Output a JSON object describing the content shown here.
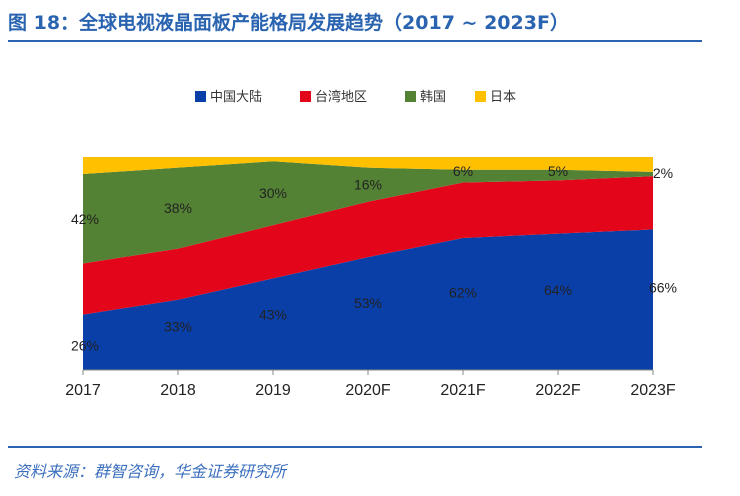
{
  "title": "图 18：全球电视液晶面板产能格局发展趋势（2017 ~ 2023F）",
  "source": "资料来源：群智咨询，华金证券研究所",
  "chart_data": {
    "type": "area",
    "stacked": "percent",
    "categories": [
      "2017",
      "2018",
      "2019",
      "2020F",
      "2021F",
      "2022F",
      "2023F"
    ],
    "ylim": [
      0,
      100
    ],
    "legend_position": "top",
    "grid": false,
    "series": [
      {
        "name": "中国大陆",
        "color": "#0b3fa8",
        "values": [
          26,
          33,
          43,
          53,
          62,
          64,
          66
        ],
        "labels": [
          "26%",
          "33%",
          "43%",
          "53%",
          "62%",
          "64%",
          "66%"
        ]
      },
      {
        "name": "台湾地区",
        "color": "#e3061a",
        "values": [
          24,
          24,
          25,
          26,
          26,
          25,
          25
        ],
        "labels": []
      },
      {
        "name": "韩国",
        "color": "#548235",
        "values": [
          42,
          38,
          30,
          16,
          6,
          5,
          2
        ],
        "labels": [
          "42%",
          "38%",
          "30%",
          "16%",
          "6%",
          "5%",
          "2%"
        ]
      },
      {
        "name": "日本",
        "color": "#ffc000",
        "values": [
          8,
          5,
          2,
          5,
          6,
          6,
          7
        ],
        "labels": []
      }
    ]
  }
}
